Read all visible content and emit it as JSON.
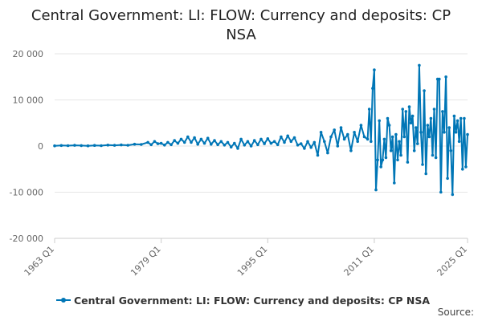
{
  "title": "Central Government: LI: FLOW: Currency and deposits: CP NSA",
  "source_label": "Source:",
  "colors": {
    "series": "#0076b6",
    "grid": "#e6e6e6",
    "text": "#666666"
  },
  "chart_data": {
    "type": "line",
    "title": "Central Government: LI: FLOW: Currency and deposits: CP NSA",
    "xlabel": "",
    "ylabel": "",
    "x_range": [
      1963.0,
      2025.0
    ],
    "ylim": [
      -20000,
      20000
    ],
    "y_ticks": [
      20000,
      10000,
      0,
      -10000,
      -20000
    ],
    "y_tick_labels": [
      "20 000",
      "10 000",
      "0",
      "-10 000",
      "-20 000"
    ],
    "x_ticks": [
      1963.0,
      1979.0,
      1995.0,
      2011.0,
      2025.0
    ],
    "x_tick_labels": [
      "1963 Q1",
      "1979 Q1",
      "1995 Q1",
      "2011 Q1",
      "2025 Q1"
    ],
    "grid": "horizontal",
    "legend_position": "bottom",
    "series": [
      {
        "name": "Central Government: LI: FLOW: Currency and deposits: CP NSA",
        "x_unit": "year (quarterly)",
        "points": [
          [
            1963.0,
            50
          ],
          [
            1964.0,
            120
          ],
          [
            1965.0,
            80
          ],
          [
            1966.0,
            150
          ],
          [
            1967.0,
            100
          ],
          [
            1968.0,
            60
          ],
          [
            1969.0,
            140
          ],
          [
            1970.0,
            90
          ],
          [
            1971.0,
            200
          ],
          [
            1972.0,
            150
          ],
          [
            1973.0,
            250
          ],
          [
            1974.0,
            180
          ],
          [
            1975.0,
            400
          ],
          [
            1976.0,
            350
          ],
          [
            1977.0,
            800
          ],
          [
            1977.5,
            300
          ],
          [
            1978.0,
            1000
          ],
          [
            1978.5,
            500
          ],
          [
            1979.0,
            600
          ],
          [
            1979.5,
            200
          ],
          [
            1980.0,
            800
          ],
          [
            1980.5,
            300
          ],
          [
            1981.0,
            1200
          ],
          [
            1981.5,
            600
          ],
          [
            1982.0,
            1500
          ],
          [
            1982.5,
            800
          ],
          [
            1983.0,
            2000
          ],
          [
            1983.5,
            800
          ],
          [
            1984.0,
            1800
          ],
          [
            1984.5,
            400
          ],
          [
            1985.0,
            1500
          ],
          [
            1985.5,
            600
          ],
          [
            1986.0,
            1700
          ],
          [
            1986.5,
            400
          ],
          [
            1987.0,
            1200
          ],
          [
            1987.5,
            300
          ],
          [
            1988.0,
            1000
          ],
          [
            1988.5,
            200
          ],
          [
            1989.0,
            800
          ],
          [
            1989.5,
            -200
          ],
          [
            1990.0,
            600
          ],
          [
            1990.5,
            -500
          ],
          [
            1991.0,
            1500
          ],
          [
            1991.5,
            200
          ],
          [
            1992.0,
            1000
          ],
          [
            1992.5,
            0
          ],
          [
            1993.0,
            1200
          ],
          [
            1993.5,
            300
          ],
          [
            1994.0,
            1500
          ],
          [
            1994.5,
            500
          ],
          [
            1995.0,
            1600
          ],
          [
            1995.5,
            600
          ],
          [
            1996.0,
            1000
          ],
          [
            1996.5,
            300
          ],
          [
            1997.0,
            2000
          ],
          [
            1997.5,
            800
          ],
          [
            1998.0,
            2200
          ],
          [
            1998.5,
            1000
          ],
          [
            1999.0,
            1800
          ],
          [
            1999.5,
            200
          ],
          [
            2000.0,
            500
          ],
          [
            2000.5,
            -500
          ],
          [
            2001.0,
            1000
          ],
          [
            2001.5,
            -300
          ],
          [
            2002.0,
            800
          ],
          [
            2002.5,
            -2000
          ],
          [
            2003.0,
            3000
          ],
          [
            2003.5,
            1000
          ],
          [
            2004.0,
            -1500
          ],
          [
            2004.5,
            2000
          ],
          [
            2005.0,
            3500
          ],
          [
            2005.5,
            0
          ],
          [
            2006.0,
            4000
          ],
          [
            2006.5,
            1500
          ],
          [
            2007.0,
            2500
          ],
          [
            2007.5,
            -1000
          ],
          [
            2008.0,
            3000
          ],
          [
            2008.5,
            1000
          ],
          [
            2009.0,
            4500
          ],
          [
            2009.5,
            2000
          ],
          [
            2010.0,
            1500
          ],
          [
            2010.25,
            8000
          ],
          [
            2010.5,
            1000
          ],
          [
            2010.75,
            12500
          ],
          [
            2011.0,
            16500
          ],
          [
            2011.25,
            -9500
          ],
          [
            2011.5,
            -3000
          ],
          [
            2011.75,
            5500
          ],
          [
            2012.0,
            -4500
          ],
          [
            2012.25,
            -3000
          ],
          [
            2012.5,
            1500
          ],
          [
            2012.75,
            -2500
          ],
          [
            2013.0,
            6000
          ],
          [
            2013.25,
            4500
          ],
          [
            2013.5,
            -1000
          ],
          [
            2013.75,
            2000
          ],
          [
            2014.0,
            -8000
          ],
          [
            2014.25,
            2500
          ],
          [
            2014.5,
            -3000
          ],
          [
            2014.75,
            1000
          ],
          [
            2015.0,
            -2000
          ],
          [
            2015.25,
            8000
          ],
          [
            2015.5,
            2000
          ],
          [
            2015.75,
            7500
          ],
          [
            2016.0,
            -3500
          ],
          [
            2016.25,
            8500
          ],
          [
            2016.5,
            5000
          ],
          [
            2016.75,
            6500
          ],
          [
            2017.0,
            -1000
          ],
          [
            2017.25,
            4000
          ],
          [
            2017.5,
            500
          ],
          [
            2017.75,
            17500
          ],
          [
            2018.0,
            3000
          ],
          [
            2018.25,
            -4000
          ],
          [
            2018.5,
            12000
          ],
          [
            2018.75,
            -6000
          ],
          [
            2019.0,
            4500
          ],
          [
            2019.25,
            2000
          ],
          [
            2019.5,
            6000
          ],
          [
            2019.75,
            -2000
          ],
          [
            2020.0,
            8000
          ],
          [
            2020.25,
            -2500
          ],
          [
            2020.5,
            14500
          ],
          [
            2020.75,
            14500
          ],
          [
            2021.0,
            -10000
          ],
          [
            2021.25,
            7500
          ],
          [
            2021.5,
            3000
          ],
          [
            2021.75,
            15000
          ],
          [
            2022.0,
            -7000
          ],
          [
            2022.25,
            4000
          ],
          [
            2022.5,
            -1000
          ],
          [
            2022.75,
            -10500
          ],
          [
            2023.0,
            6500
          ],
          [
            2023.25,
            3000
          ],
          [
            2023.5,
            5500
          ],
          [
            2023.75,
            1000
          ],
          [
            2024.0,
            6000
          ],
          [
            2024.25,
            -5000
          ],
          [
            2024.5,
            6000
          ],
          [
            2024.75,
            -4500
          ],
          [
            2025.0,
            2500
          ]
        ]
      }
    ]
  }
}
